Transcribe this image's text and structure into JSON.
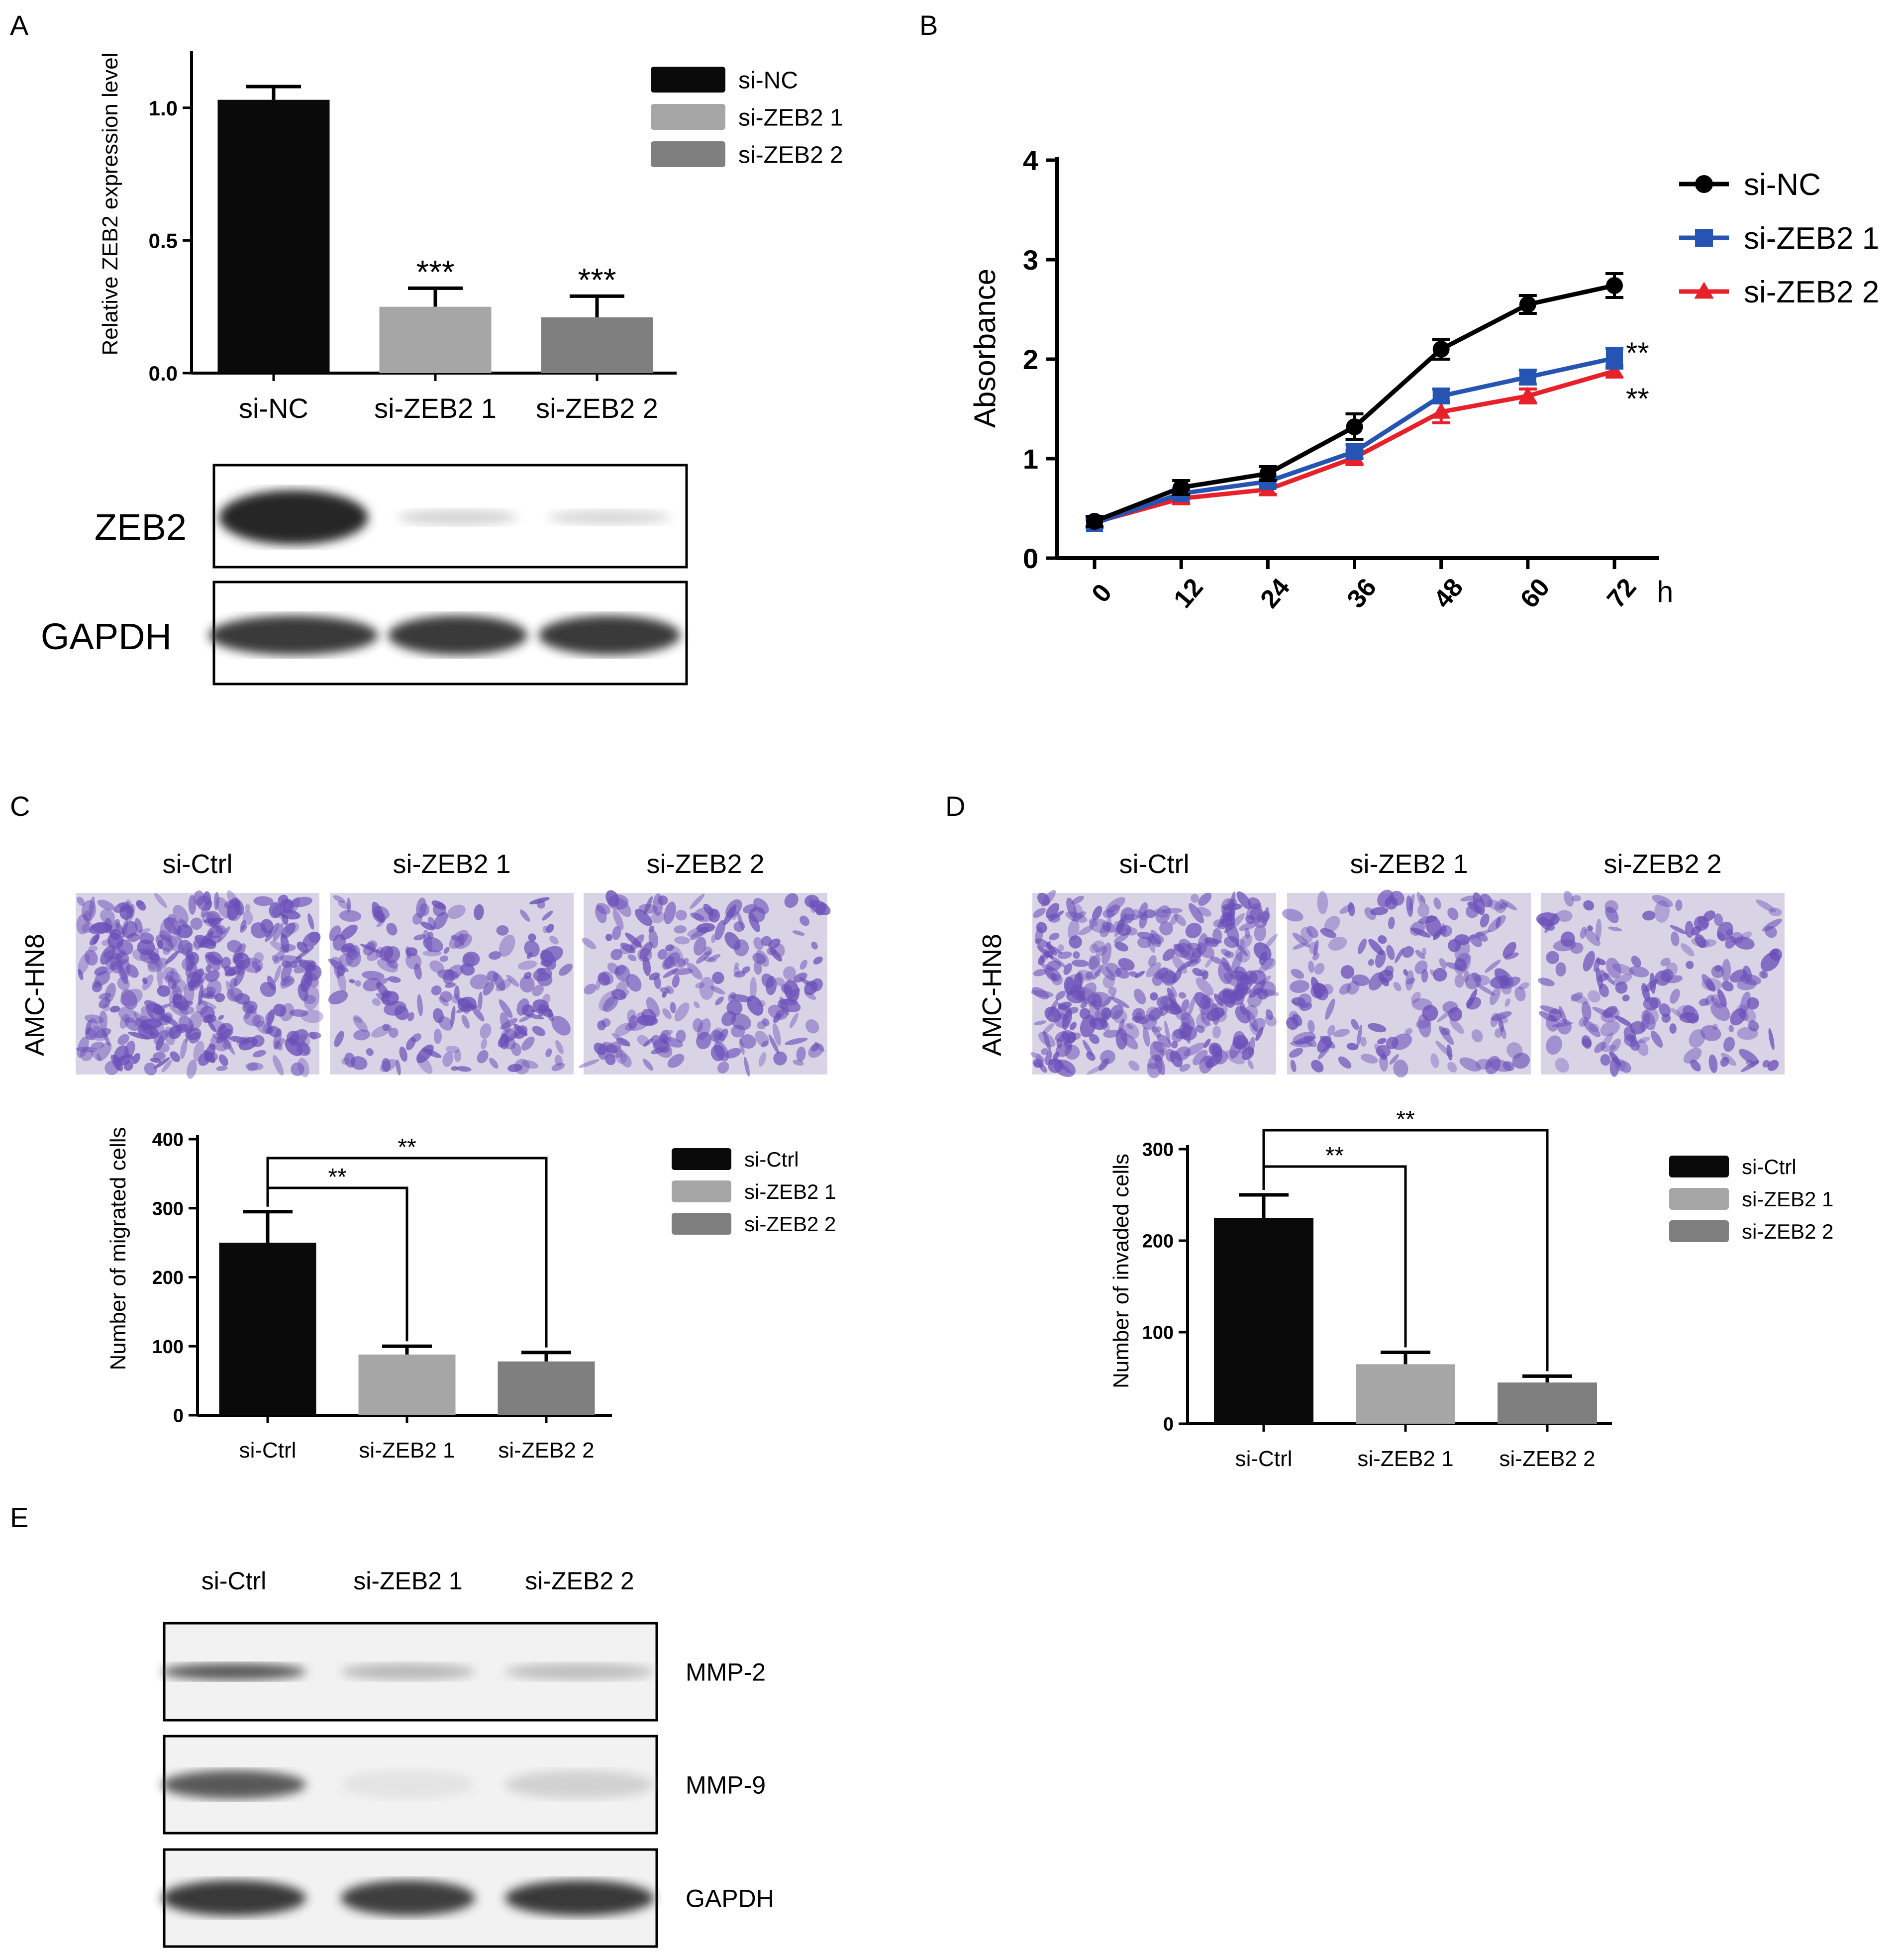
{
  "panels": {
    "A": "A",
    "B": "B",
    "C": "C",
    "D": "D",
    "E": "E"
  },
  "colors": {
    "black": "#0a0a0a",
    "light_gray": "#a6a6a6",
    "dark_gray": "#7f7f7f",
    "line_black": "#000000",
    "line_blue": "#2554b2",
    "line_red": "#e8202a",
    "stain_purple": "#6b4fb8"
  },
  "chart_data": [
    {
      "id": "A",
      "type": "bar",
      "ylabel": "Relative ZEB2 expression level",
      "categories": [
        "si-NC",
        "si-ZEB2 1",
        "si-ZEB2 2"
      ],
      "values": [
        1.03,
        0.25,
        0.21
      ],
      "errors": [
        0.05,
        0.07,
        0.08
      ],
      "annotations": [
        "",
        "***",
        "***"
      ],
      "yticks": [
        "0.0",
        "0.5",
        "1.0"
      ],
      "ylim": [
        0,
        1.2
      ],
      "legend": [
        "si-NC",
        "si-ZEB2 1",
        "si-ZEB2 2"
      ],
      "legend_position": "top-right"
    },
    {
      "id": "B",
      "type": "line",
      "ylabel": "Absorbance",
      "x": [
        0,
        12,
        24,
        36,
        48,
        60,
        72
      ],
      "xticks": [
        "0",
        "12",
        "24",
        "36",
        "48",
        "60",
        "72"
      ],
      "xunit": "h",
      "yticks": [
        "0",
        "1",
        "2",
        "3",
        "4"
      ],
      "ylim": [
        0,
        4
      ],
      "series": [
        {
          "name": "si-NC",
          "values": [
            0.37,
            0.71,
            0.85,
            1.32,
            2.1,
            2.55,
            2.74
          ],
          "errors": [
            0.05,
            0.07,
            0.07,
            0.13,
            0.1,
            0.09,
            0.12
          ]
        },
        {
          "name": "si-ZEB2 1",
          "values": [
            0.35,
            0.65,
            0.77,
            1.07,
            1.63,
            1.82,
            2.01
          ],
          "errors": [
            0.04,
            0.05,
            0.05,
            0.07,
            0.07,
            0.07,
            0.1
          ]
        },
        {
          "name": "si-ZEB2 2",
          "values": [
            0.36,
            0.6,
            0.69,
            1.01,
            1.47,
            1.63,
            1.88
          ],
          "errors": [
            0.04,
            0.05,
            0.05,
            0.07,
            0.11,
            0.07,
            0.06
          ]
        }
      ],
      "annotations": [
        "**",
        "**"
      ],
      "legend_position": "top-right"
    },
    {
      "id": "C",
      "type": "bar",
      "ylabel": "Number of migrated cells",
      "categories": [
        "si-Ctrl",
        "si-ZEB2 1",
        "si-ZEB2 2"
      ],
      "values": [
        250,
        88,
        78
      ],
      "errors": [
        45,
        12,
        13
      ],
      "yticks": [
        "0",
        "100",
        "200",
        "300",
        "400"
      ],
      "ylim": [
        0,
        400
      ],
      "significance": [
        "**",
        "**"
      ],
      "legend": [
        "si-Ctrl",
        "si-ZEB2 1",
        "si-ZEB2 2"
      ],
      "legend_position": "right"
    },
    {
      "id": "D",
      "type": "bar",
      "ylabel": "Number of invaded cells",
      "categories": [
        "si-Ctrl",
        "si-ZEB2 1",
        "si-ZEB2 2"
      ],
      "values": [
        225,
        65,
        45
      ],
      "errors": [
        25,
        13,
        7
      ],
      "yticks": [
        "0",
        "100",
        "200",
        "300"
      ],
      "ylim": [
        0,
        300
      ],
      "significance": [
        "**",
        "**"
      ],
      "legend": [
        "si-Ctrl",
        "si-ZEB2 1",
        "si-ZEB2 2"
      ],
      "legend_position": "right"
    }
  ],
  "blot_A": {
    "rows": [
      {
        "label": "ZEB2",
        "intensities": [
          1.0,
          0.32,
          0.3
        ]
      },
      {
        "label": "GAPDH",
        "intensities": [
          0.95,
          0.95,
          0.95
        ]
      }
    ]
  },
  "micro": {
    "C": {
      "row_label": "AMC-HN8",
      "columns": [
        "si-Ctrl",
        "si-ZEB2 1",
        "si-ZEB2 2"
      ],
      "densities": [
        1.0,
        0.38,
        0.45
      ]
    },
    "D": {
      "row_label": "AMC-HN8",
      "columns": [
        "si-Ctrl",
        "si-ZEB2 1",
        "si-ZEB2 2"
      ],
      "densities": [
        1.0,
        0.35,
        0.3
      ]
    }
  },
  "blot_E": {
    "columns": [
      "si-Ctrl",
      "si-ZEB2 1",
      "si-ZEB2 2"
    ],
    "rows": [
      {
        "label": "MMP-2",
        "intensities": [
          0.85,
          0.45,
          0.42
        ]
      },
      {
        "label": "MMP-9",
        "intensities": [
          0.85,
          0.15,
          0.3
        ]
      },
      {
        "label": "GAPDH",
        "intensities": [
          0.95,
          0.93,
          0.95
        ]
      }
    ]
  }
}
